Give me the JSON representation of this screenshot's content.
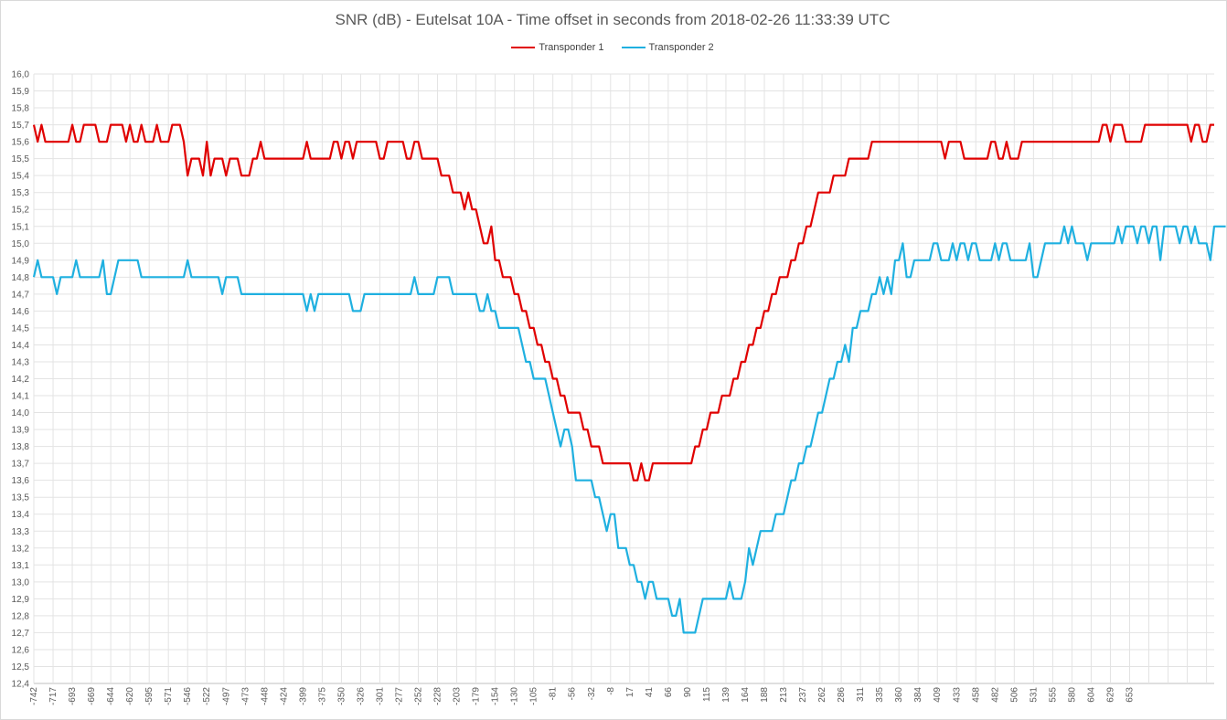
{
  "chart_data": {
    "type": "line",
    "title": "SNR (dB) - Eutelsat 10A - Time offset in seconds from 2018-02-26 11:33:39 UTC",
    "xlabel": "",
    "ylabel": "",
    "ylim": [
      12.4,
      16.0
    ],
    "ystep": 0.1,
    "grid": true,
    "legend_position": "top",
    "x_tick_labels": [
      "-742",
      "-717",
      "-693",
      "-669",
      "-644",
      "-620",
      "-595",
      "-571",
      "-546",
      "-522",
      "-497",
      "-473",
      "-448",
      "-424",
      "-399",
      "-375",
      "-350",
      "-326",
      "-301",
      "-277",
      "-252",
      "-228",
      "-203",
      "-179",
      "-154",
      "-130",
      "-105",
      "-81",
      "-56",
      "-32",
      "-8",
      "17",
      "41",
      "66",
      "90",
      "115",
      "139",
      "164",
      "188",
      "213",
      "237",
      "262",
      "286",
      "311",
      "335",
      "360",
      "384",
      "409",
      "433",
      "458",
      "482",
      "506",
      "531",
      "555",
      "580",
      "604",
      "629",
      "653"
    ],
    "x_tick_every": 5,
    "series": [
      {
        "name": "Transponder 1",
        "color": "#e00000",
        "values": [
          15.7,
          15.6,
          15.7,
          15.6,
          15.6,
          15.6,
          15.6,
          15.6,
          15.6,
          15.6,
          15.7,
          15.6,
          15.6,
          15.7,
          15.7,
          15.7,
          15.7,
          15.6,
          15.6,
          15.6,
          15.7,
          15.7,
          15.7,
          15.7,
          15.6,
          15.7,
          15.6,
          15.6,
          15.7,
          15.6,
          15.6,
          15.6,
          15.7,
          15.6,
          15.6,
          15.6,
          15.7,
          15.7,
          15.7,
          15.6,
          15.4,
          15.5,
          15.5,
          15.5,
          15.4,
          15.6,
          15.4,
          15.5,
          15.5,
          15.5,
          15.4,
          15.5,
          15.5,
          15.5,
          15.4,
          15.4,
          15.4,
          15.5,
          15.5,
          15.6,
          15.5,
          15.5,
          15.5,
          15.5,
          15.5,
          15.5,
          15.5,
          15.5,
          15.5,
          15.5,
          15.5,
          15.6,
          15.5,
          15.5,
          15.5,
          15.5,
          15.5,
          15.5,
          15.6,
          15.6,
          15.5,
          15.6,
          15.6,
          15.5,
          15.6,
          15.6,
          15.6,
          15.6,
          15.6,
          15.6,
          15.5,
          15.5,
          15.6,
          15.6,
          15.6,
          15.6,
          15.6,
          15.5,
          15.5,
          15.6,
          15.6,
          15.5,
          15.5,
          15.5,
          15.5,
          15.5,
          15.4,
          15.4,
          15.4,
          15.3,
          15.3,
          15.3,
          15.2,
          15.3,
          15.2,
          15.2,
          15.1,
          15.0,
          15.0,
          15.1,
          14.9,
          14.9,
          14.8,
          14.8,
          14.8,
          14.7,
          14.7,
          14.6,
          14.6,
          14.5,
          14.5,
          14.4,
          14.4,
          14.3,
          14.3,
          14.2,
          14.2,
          14.1,
          14.1,
          14.0,
          14.0,
          14.0,
          14.0,
          13.9,
          13.9,
          13.8,
          13.8,
          13.8,
          13.7,
          13.7,
          13.7,
          13.7,
          13.7,
          13.7,
          13.7,
          13.7,
          13.6,
          13.6,
          13.7,
          13.6,
          13.6,
          13.7,
          13.7,
          13.7,
          13.7,
          13.7,
          13.7,
          13.7,
          13.7,
          13.7,
          13.7,
          13.7,
          13.8,
          13.8,
          13.9,
          13.9,
          14.0,
          14.0,
          14.0,
          14.1,
          14.1,
          14.1,
          14.2,
          14.2,
          14.3,
          14.3,
          14.4,
          14.4,
          14.5,
          14.5,
          14.6,
          14.6,
          14.7,
          14.7,
          14.8,
          14.8,
          14.8,
          14.9,
          14.9,
          15.0,
          15.0,
          15.1,
          15.1,
          15.2,
          15.3,
          15.3,
          15.3,
          15.3,
          15.4,
          15.4,
          15.4,
          15.4,
          15.5,
          15.5,
          15.5,
          15.5,
          15.5,
          15.5,
          15.6,
          15.6,
          15.6,
          15.6,
          15.6,
          15.6,
          15.6,
          15.6,
          15.6,
          15.6,
          15.6,
          15.6,
          15.6,
          15.6,
          15.6,
          15.6,
          15.6,
          15.6,
          15.6,
          15.5,
          15.6,
          15.6,
          15.6,
          15.6,
          15.5,
          15.5,
          15.5,
          15.5,
          15.5,
          15.5,
          15.5,
          15.6,
          15.6,
          15.5,
          15.5,
          15.6,
          15.5,
          15.5,
          15.5,
          15.6,
          15.6,
          15.6,
          15.6,
          15.6,
          15.6,
          15.6,
          15.6,
          15.6,
          15.6,
          15.6,
          15.6,
          15.6,
          15.6,
          15.6,
          15.6,
          15.6,
          15.6,
          15.6,
          15.6,
          15.6,
          15.7,
          15.7,
          15.6,
          15.7,
          15.7,
          15.7,
          15.6,
          15.6,
          15.6,
          15.6,
          15.6,
          15.7,
          15.7,
          15.7,
          15.7,
          15.7,
          15.7,
          15.7,
          15.7,
          15.7,
          15.7,
          15.7,
          15.7,
          15.6,
          15.7,
          15.7,
          15.6,
          15.6,
          15.7,
          15.7
        ]
      },
      {
        "name": "Transponder 2",
        "color": "#1fb0e0",
        "values": [
          14.8,
          14.9,
          14.8,
          14.8,
          14.8,
          14.8,
          14.7,
          14.8,
          14.8,
          14.8,
          14.8,
          14.9,
          14.8,
          14.8,
          14.8,
          14.8,
          14.8,
          14.8,
          14.9,
          14.7,
          14.7,
          14.8,
          14.9,
          14.9,
          14.9,
          14.9,
          14.9,
          14.9,
          14.8,
          14.8,
          14.8,
          14.8,
          14.8,
          14.8,
          14.8,
          14.8,
          14.8,
          14.8,
          14.8,
          14.8,
          14.9,
          14.8,
          14.8,
          14.8,
          14.8,
          14.8,
          14.8,
          14.8,
          14.8,
          14.7,
          14.8,
          14.8,
          14.8,
          14.8,
          14.7,
          14.7,
          14.7,
          14.7,
          14.7,
          14.7,
          14.7,
          14.7,
          14.7,
          14.7,
          14.7,
          14.7,
          14.7,
          14.7,
          14.7,
          14.7,
          14.7,
          14.6,
          14.7,
          14.6,
          14.7,
          14.7,
          14.7,
          14.7,
          14.7,
          14.7,
          14.7,
          14.7,
          14.7,
          14.6,
          14.6,
          14.6,
          14.7,
          14.7,
          14.7,
          14.7,
          14.7,
          14.7,
          14.7,
          14.7,
          14.7,
          14.7,
          14.7,
          14.7,
          14.7,
          14.8,
          14.7,
          14.7,
          14.7,
          14.7,
          14.7,
          14.8,
          14.8,
          14.8,
          14.8,
          14.7,
          14.7,
          14.7,
          14.7,
          14.7,
          14.7,
          14.7,
          14.6,
          14.6,
          14.7,
          14.6,
          14.6,
          14.5,
          14.5,
          14.5,
          14.5,
          14.5,
          14.5,
          14.4,
          14.3,
          14.3,
          14.2,
          14.2,
          14.2,
          14.2,
          14.1,
          14.0,
          13.9,
          13.8,
          13.9,
          13.9,
          13.8,
          13.6,
          13.6,
          13.6,
          13.6,
          13.6,
          13.5,
          13.5,
          13.4,
          13.3,
          13.4,
          13.4,
          13.2,
          13.2,
          13.2,
          13.1,
          13.1,
          13.0,
          13.0,
          12.9,
          13.0,
          13.0,
          12.9,
          12.9,
          12.9,
          12.9,
          12.8,
          12.8,
          12.9,
          12.7,
          12.7,
          12.7,
          12.7,
          12.8,
          12.9,
          12.9,
          12.9,
          12.9,
          12.9,
          12.9,
          12.9,
          13.0,
          12.9,
          12.9,
          12.9,
          13.0,
          13.2,
          13.1,
          13.2,
          13.3,
          13.3,
          13.3,
          13.3,
          13.4,
          13.4,
          13.4,
          13.5,
          13.6,
          13.6,
          13.7,
          13.7,
          13.8,
          13.8,
          13.9,
          14.0,
          14.0,
          14.1,
          14.2,
          14.2,
          14.3,
          14.3,
          14.4,
          14.3,
          14.5,
          14.5,
          14.6,
          14.6,
          14.6,
          14.7,
          14.7,
          14.8,
          14.7,
          14.8,
          14.7,
          14.9,
          14.9,
          15.0,
          14.8,
          14.8,
          14.9,
          14.9,
          14.9,
          14.9,
          14.9,
          15.0,
          15.0,
          14.9,
          14.9,
          14.9,
          15.0,
          14.9,
          15.0,
          15.0,
          14.9,
          15.0,
          15.0,
          14.9,
          14.9,
          14.9,
          14.9,
          15.0,
          14.9,
          15.0,
          15.0,
          14.9,
          14.9,
          14.9,
          14.9,
          14.9,
          15.0,
          14.8,
          14.8,
          14.9,
          15.0,
          15.0,
          15.0,
          15.0,
          15.0,
          15.1,
          15.0,
          15.1,
          15.0,
          15.0,
          15.0,
          14.9,
          15.0,
          15.0,
          15.0,
          15.0,
          15.0,
          15.0,
          15.0,
          15.1,
          15.0,
          15.1,
          15.1,
          15.1,
          15.0,
          15.1,
          15.1,
          15.0,
          15.1,
          15.1,
          14.9,
          15.1,
          15.1,
          15.1,
          15.1,
          15.0,
          15.1,
          15.1,
          15.0,
          15.1,
          15.0,
          15.0,
          15.0,
          14.9,
          15.1,
          15.1,
          15.1,
          15.1
        ]
      }
    ]
  }
}
